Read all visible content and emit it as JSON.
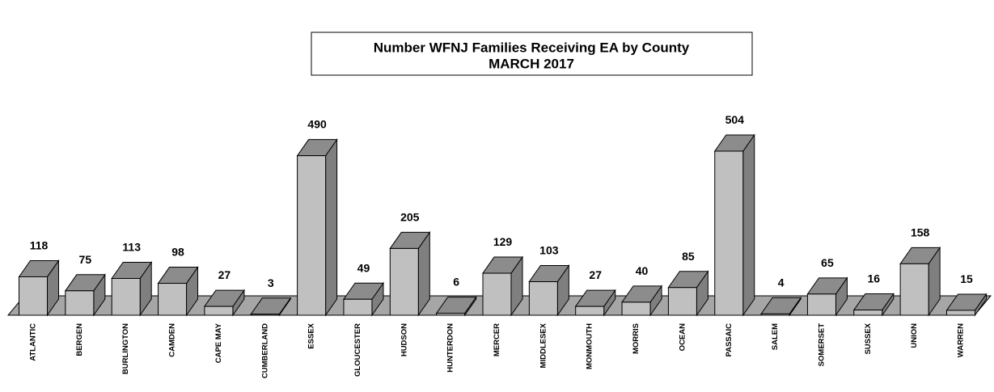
{
  "chart_data": {
    "type": "bar3d",
    "title": "Number WFNJ Families Receiving EA by County",
    "subtitle": "MARCH 2017",
    "categories": [
      "ATLANTIC",
      "BERGEN",
      "BURLINGTON",
      "CAMDEN",
      "CAPE MAY",
      "CUMBERLAND",
      "ESSEX",
      "GLOUCESTER",
      "HUDSON",
      "HUNTERDON",
      "MERCER",
      "MIDDLESEX",
      "MONMOUTH",
      "MORRIS",
      "OCEAN",
      "PASSAIC",
      "SALEM",
      "SOMERSET",
      "SUSSEX",
      "UNION",
      "WARREN"
    ],
    "values": [
      118,
      75,
      113,
      98,
      27,
      3,
      490,
      49,
      205,
      6,
      129,
      103,
      27,
      40,
      85,
      504,
      4,
      65,
      16,
      158,
      15
    ],
    "color": "#c0c0c0"
  }
}
